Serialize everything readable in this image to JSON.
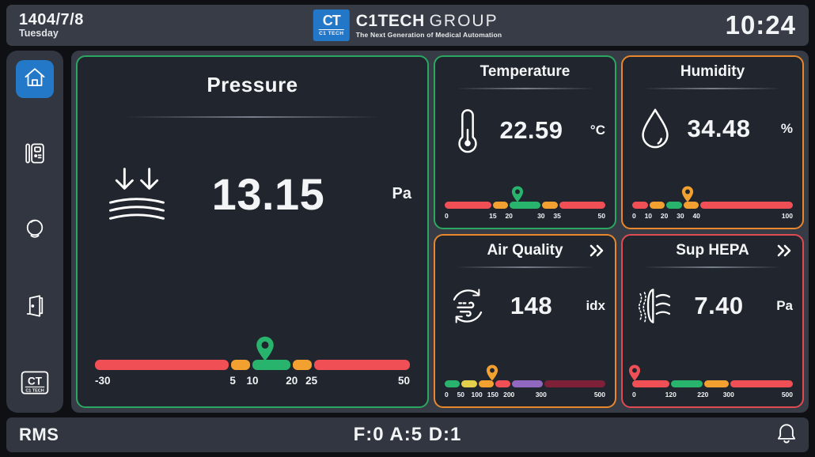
{
  "topbar": {
    "date": "1404/7/8",
    "weekday": "Tuesday",
    "time": "10:24",
    "logo": {
      "badge_top": "CT",
      "badge_bottom": "C1 TECH",
      "brand_bold": "C1TECH",
      "brand_light": "GROUP",
      "tagline": "The Next Generation of Medical Automation",
      "badge_color": "#2277c8"
    }
  },
  "sidebar": {
    "active_item": "home",
    "active_color": "#2478c8",
    "items": [
      "home",
      "devices",
      "lighting",
      "door",
      "c1tech-logo"
    ],
    "logo_top": "CT",
    "logo_bottom": "C1 TECH"
  },
  "panels": [
    {
      "id": "pressure",
      "title": "Pressure",
      "value": "13.15",
      "unit": "Pa",
      "numeric_value": 13.15,
      "border_color": "#2aa861",
      "pin_color": "#28b46c",
      "scale": {
        "min": -30,
        "max": 50,
        "labels": [
          -30,
          5,
          10,
          20,
          25,
          50
        ],
        "segments": [
          {
            "from": -30,
            "to": 5,
            "color": "#ef4f55"
          },
          {
            "from": 5,
            "to": 10,
            "color": "#f2a131"
          },
          {
            "from": 10,
            "to": 20,
            "color": "#28b46c"
          },
          {
            "from": 20,
            "to": 25,
            "color": "#f2a131"
          },
          {
            "from": 25,
            "to": 50,
            "color": "#ef4f55"
          }
        ]
      }
    },
    {
      "id": "temperature",
      "title": "Temperature",
      "value": "22.59",
      "unit": "°C",
      "numeric_value": 22.59,
      "border_color": "#2aa861",
      "pin_color": "#28b46c",
      "scale": {
        "min": 0,
        "max": 50,
        "labels": [
          0,
          15,
          20,
          30,
          35,
          50
        ],
        "segments": [
          {
            "from": 0,
            "to": 15,
            "color": "#ef4f55"
          },
          {
            "from": 15,
            "to": 20,
            "color": "#f2a131"
          },
          {
            "from": 20,
            "to": 30,
            "color": "#28b46c"
          },
          {
            "from": 30,
            "to": 35,
            "color": "#f2a131"
          },
          {
            "from": 35,
            "to": 50,
            "color": "#ef4f55"
          }
        ]
      }
    },
    {
      "id": "humidity",
      "title": "Humidity",
      "value": "34.48",
      "unit": "%",
      "numeric_value": 34.48,
      "border_color": "#e8872c",
      "pin_color": "#f2a131",
      "scale": {
        "min": 0,
        "max": 100,
        "labels": [
          0,
          10,
          20,
          30,
          40,
          100
        ],
        "segments": [
          {
            "from": 0,
            "to": 10,
            "color": "#ef4f55"
          },
          {
            "from": 10,
            "to": 20,
            "color": "#f2a131"
          },
          {
            "from": 20,
            "to": 30,
            "color": "#28b46c"
          },
          {
            "from": 30,
            "to": 40,
            "color": "#f2a131"
          },
          {
            "from": 40,
            "to": 100,
            "color": "#ef4f55"
          }
        ]
      }
    },
    {
      "id": "air-quality",
      "title": "Air Quality",
      "value": "148",
      "unit": "idx",
      "numeric_value": 148,
      "border_color": "#e8872c",
      "pin_color": "#f2a131",
      "has_more": true,
      "scale": {
        "min": 0,
        "max": 500,
        "labels": [
          0,
          50,
          100,
          150,
          200,
          300,
          500
        ],
        "segments": [
          {
            "from": 0,
            "to": 50,
            "color": "#28b46c"
          },
          {
            "from": 50,
            "to": 100,
            "color": "#e3cf4c"
          },
          {
            "from": 100,
            "to": 150,
            "color": "#f2a131"
          },
          {
            "from": 150,
            "to": 200,
            "color": "#ef4f55"
          },
          {
            "from": 200,
            "to": 300,
            "color": "#9068bf"
          },
          {
            "from": 300,
            "to": 500,
            "color": "#7e2038"
          }
        ]
      }
    },
    {
      "id": "sup-hepa",
      "title": "Sup HEPA",
      "value": "7.40",
      "unit": "Pa",
      "numeric_value": 7.4,
      "border_color": "#e04b52",
      "pin_color": "#ef4f55",
      "has_more": true,
      "scale": {
        "min": 0,
        "max": 500,
        "labels": [
          0,
          120,
          220,
          300,
          500
        ],
        "segments": [
          {
            "from": 0,
            "to": 120,
            "color": "#ef4f55"
          },
          {
            "from": 120,
            "to": 220,
            "color": "#28b46c"
          },
          {
            "from": 220,
            "to": 300,
            "color": "#f2a131"
          },
          {
            "from": 300,
            "to": 500,
            "color": "#ef4f55"
          }
        ]
      }
    }
  ],
  "bottombar": {
    "system_label": "RMS",
    "status_counters": "F:0 A:5 D:1"
  }
}
